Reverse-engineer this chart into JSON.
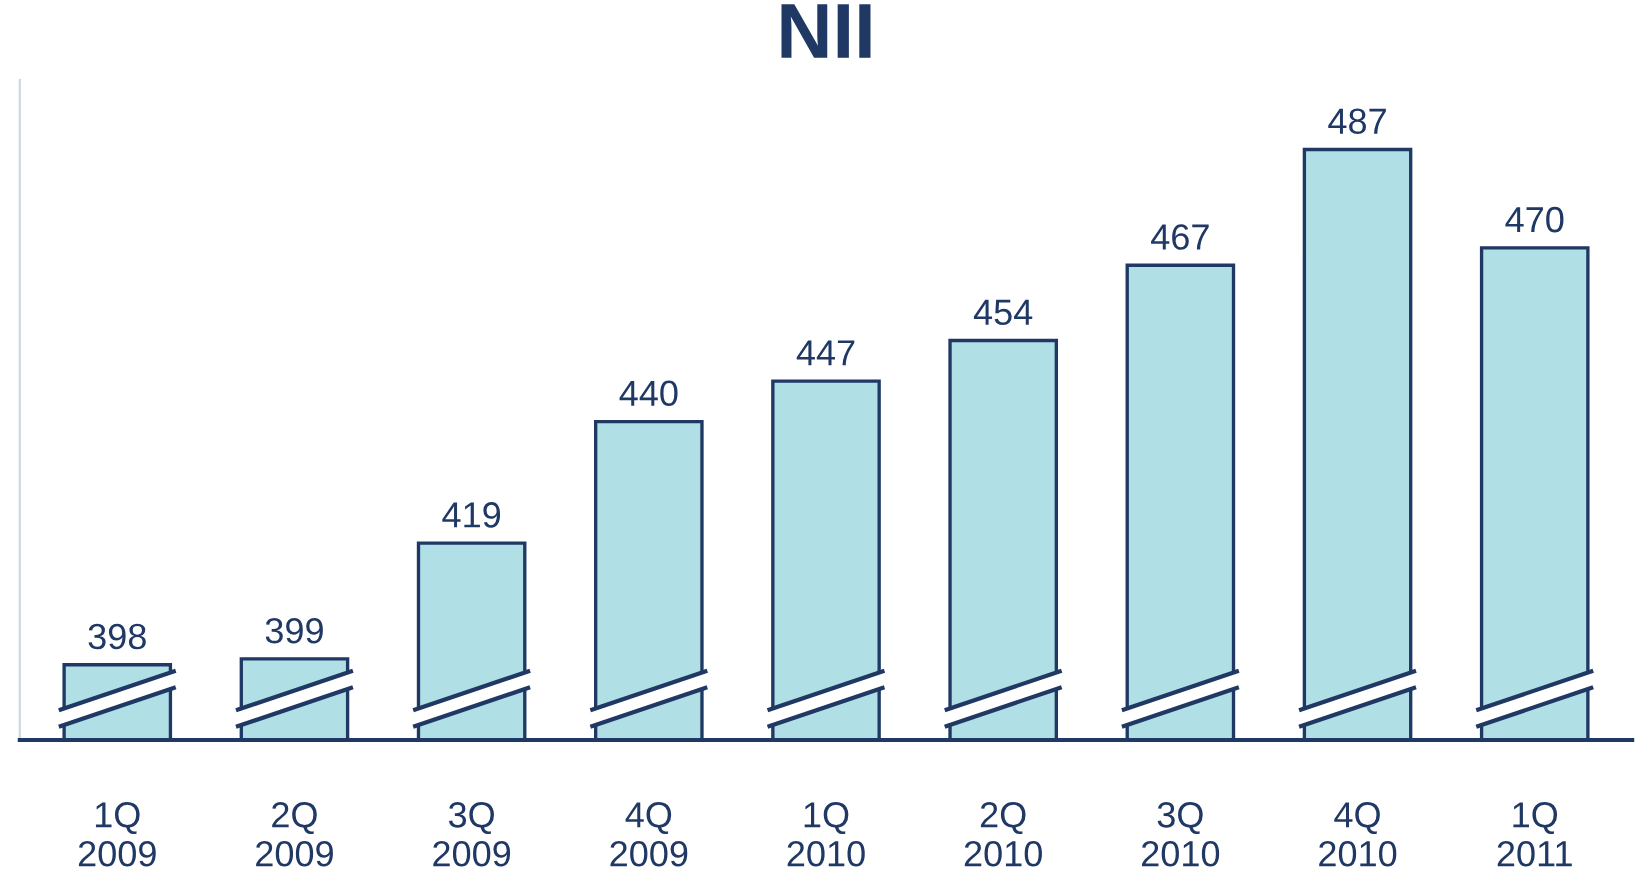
{
  "chart_data": {
    "type": "bar",
    "title": "NII",
    "categories": [
      "1Q\n2009",
      "2Q\n2009",
      "3Q\n2009",
      "4Q\n2009",
      "1Q\n2010",
      "2Q\n2010",
      "3Q\n2010",
      "4Q\n2010",
      "1Q\n2011"
    ],
    "values": [
      398,
      399,
      419,
      440,
      447,
      454,
      467,
      487,
      470
    ],
    "color": "#b0dfe5",
    "ylim": [
      385,
      499
    ],
    "data_labels": true,
    "tick_labels": "x",
    "grid": false,
    "legend": false
  }
}
